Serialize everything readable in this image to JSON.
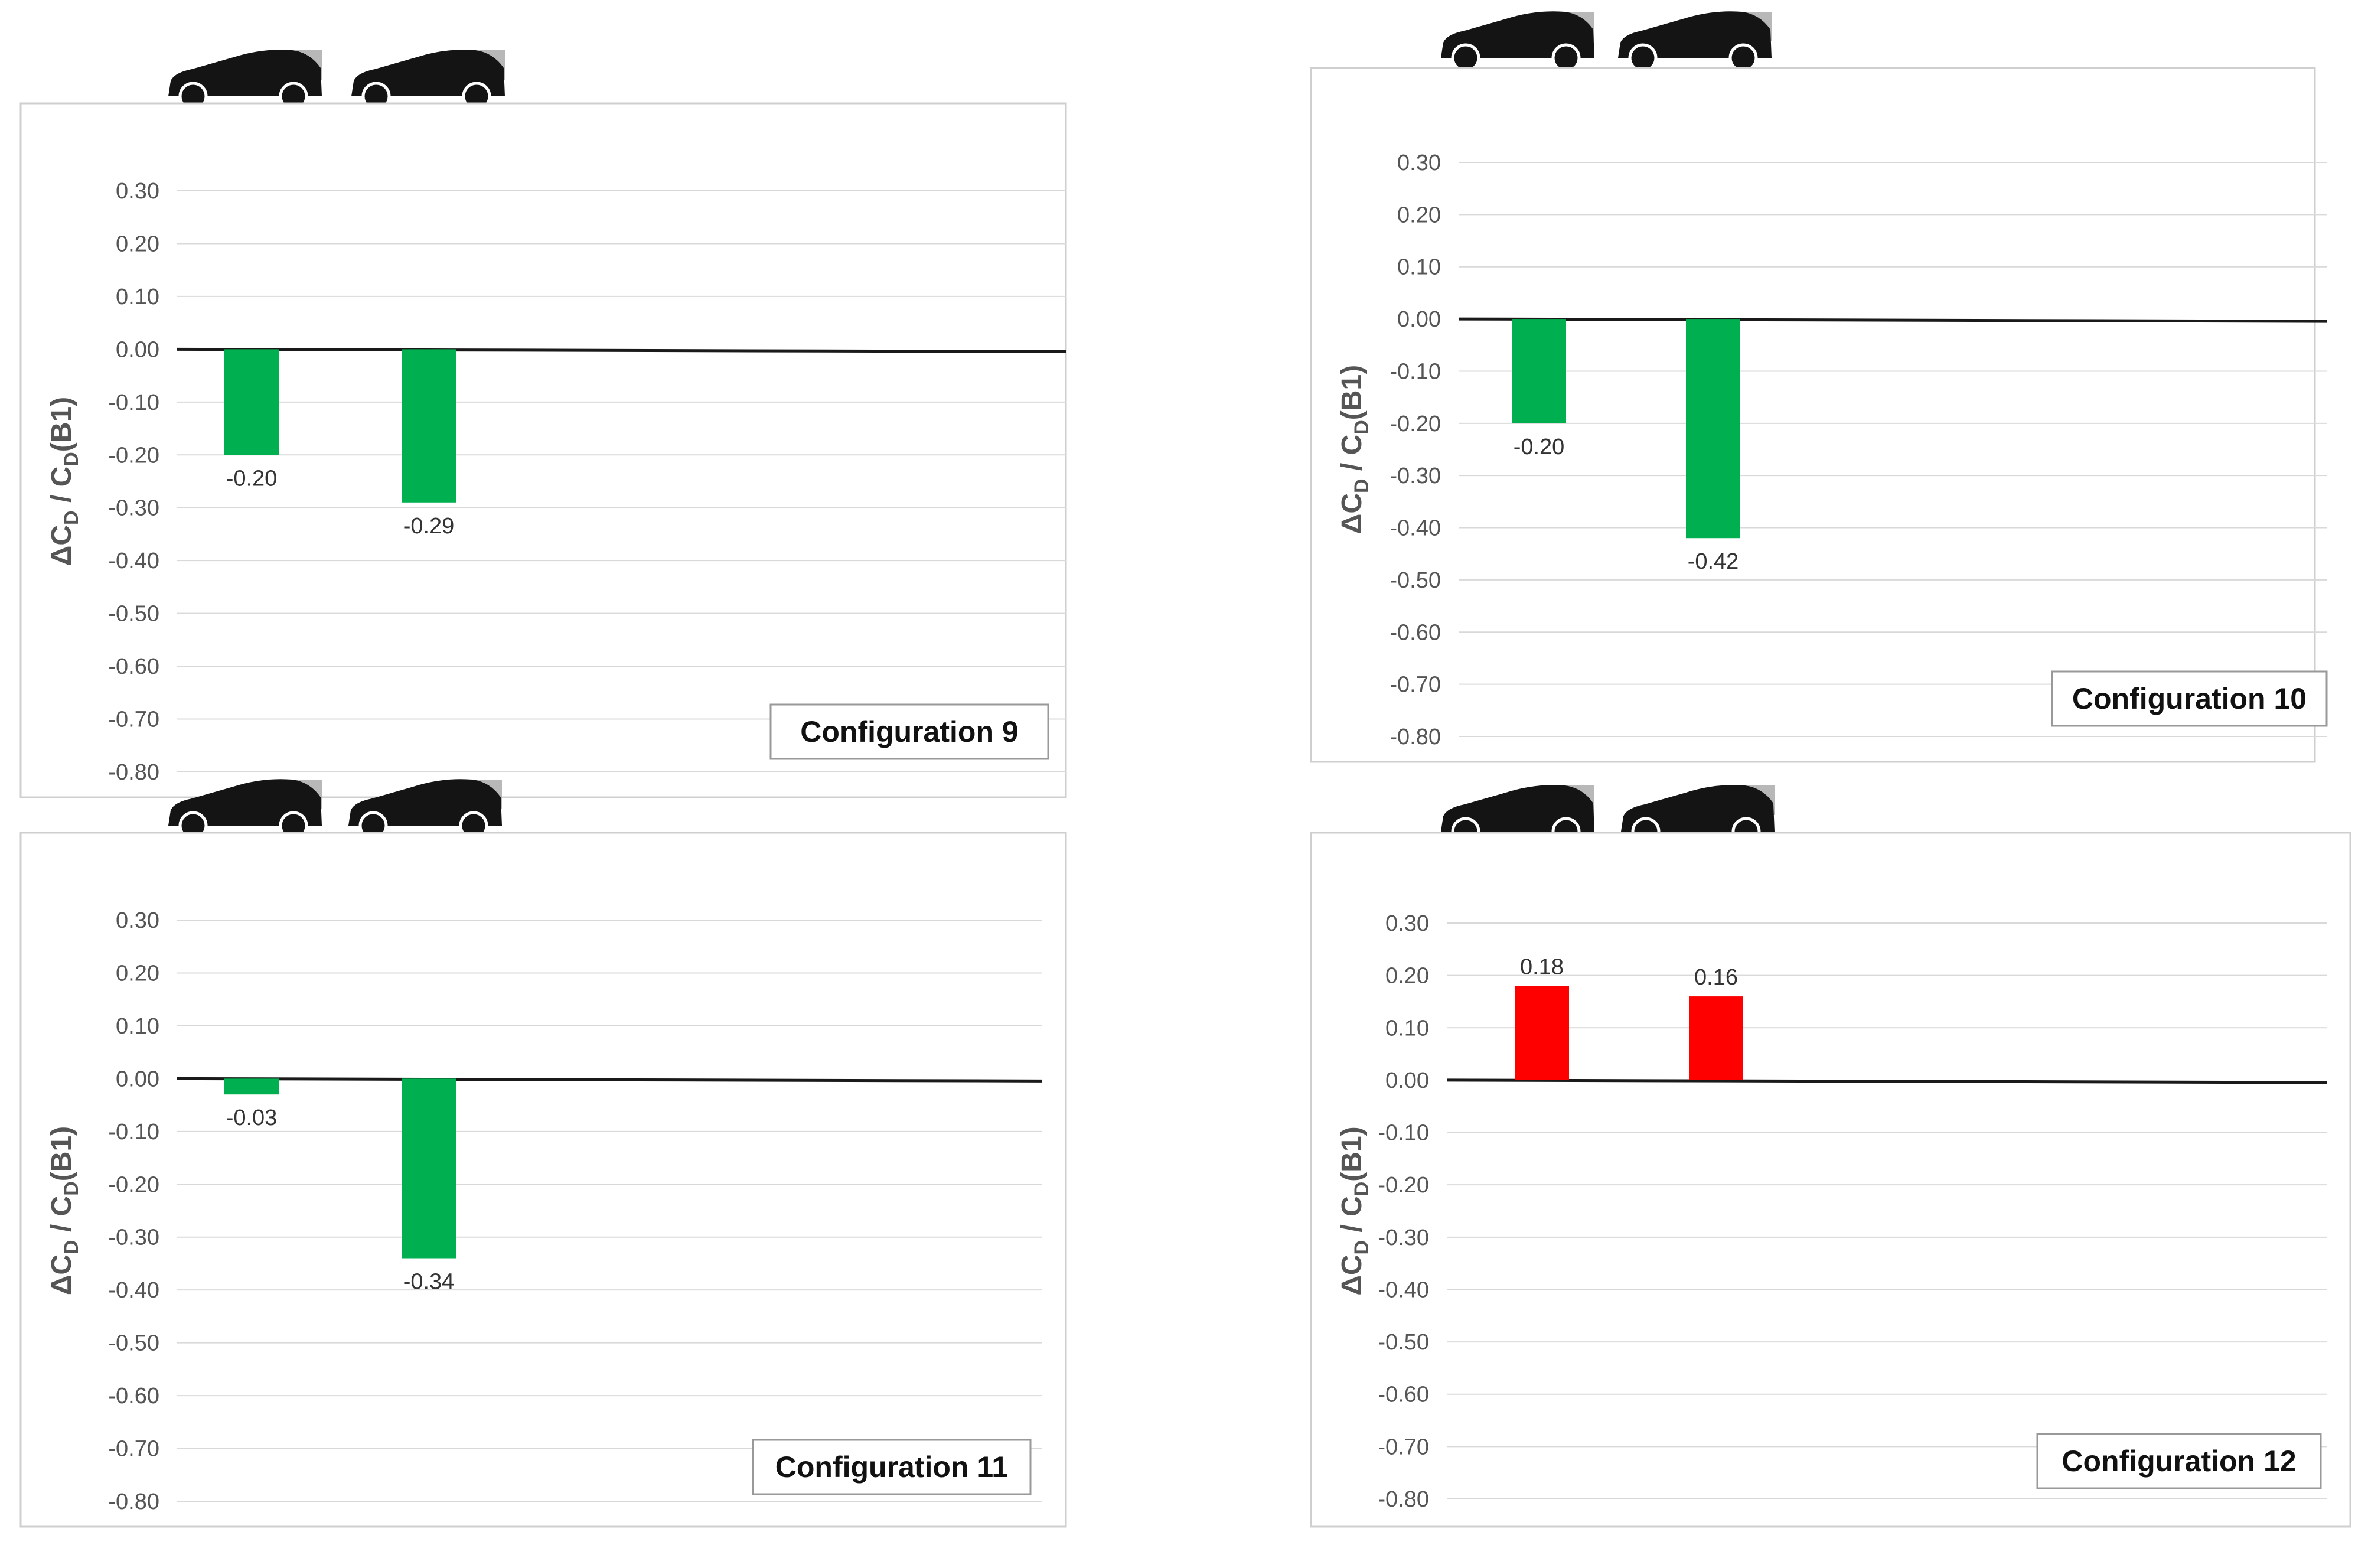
{
  "y_axis_label": {
    "main": "ΔC",
    "sub1": "D",
    "mid": " / C",
    "sub2": "D",
    "tail": "(B1)"
  },
  "colors": {
    "negative": "#00b050",
    "positive": "#ff0000"
  },
  "chart_data": [
    {
      "type": "bar",
      "config_label": "Configuration 9",
      "categories": [
        "",
        ""
      ],
      "values": [
        -0.2,
        -0.29
      ],
      "value_labels": [
        "-0.20",
        "-0.29"
      ],
      "ylim": [
        -0.8,
        0.3
      ],
      "yticks": [
        "0.30",
        "0.20",
        "0.10",
        "0.00",
        "-0.10",
        "-0.20",
        "-0.30",
        "-0.40",
        "-0.50",
        "-0.60",
        "-0.70",
        "-0.80"
      ],
      "grid": true,
      "icons": [
        "car-icon",
        "car-icon"
      ]
    },
    {
      "type": "bar",
      "config_label": "Configuration 10",
      "categories": [
        "",
        ""
      ],
      "values": [
        -0.2,
        -0.42
      ],
      "value_labels": [
        "-0.20",
        "-0.42"
      ],
      "ylim": [
        -0.8,
        0.3
      ],
      "yticks": [
        "0.30",
        "0.20",
        "0.10",
        "0.00",
        "-0.10",
        "-0.20",
        "-0.30",
        "-0.40",
        "-0.50",
        "-0.60",
        "-0.70",
        "-0.80"
      ],
      "grid": true,
      "icons": [
        "car-icon",
        "car-icon"
      ]
    },
    {
      "type": "bar",
      "config_label": "Configuration 11",
      "categories": [
        "",
        ""
      ],
      "values": [
        -0.03,
        -0.34
      ],
      "value_labels": [
        "-0.03",
        "-0.34"
      ],
      "ylim": [
        -0.8,
        0.3
      ],
      "yticks": [
        "0.30",
        "0.20",
        "0.10",
        "0.00",
        "-0.10",
        "-0.20",
        "-0.30",
        "-0.40",
        "-0.50",
        "-0.60",
        "-0.70",
        "-0.80"
      ],
      "grid": true,
      "icons": [
        "car-icon",
        "car-icon"
      ]
    },
    {
      "type": "bar",
      "config_label": "Configuration 12",
      "categories": [
        "",
        ""
      ],
      "values": [
        0.18,
        0.16
      ],
      "value_labels": [
        "0.18",
        "0.16"
      ],
      "ylim": [
        -0.8,
        0.3
      ],
      "yticks": [
        "0.30",
        "0.20",
        "0.10",
        "0.00",
        "-0.10",
        "-0.20",
        "-0.30",
        "-0.40",
        "-0.50",
        "-0.60",
        "-0.70",
        "-0.80"
      ],
      "grid": true,
      "icons": [
        "car-icon",
        "car-icon"
      ]
    }
  ]
}
